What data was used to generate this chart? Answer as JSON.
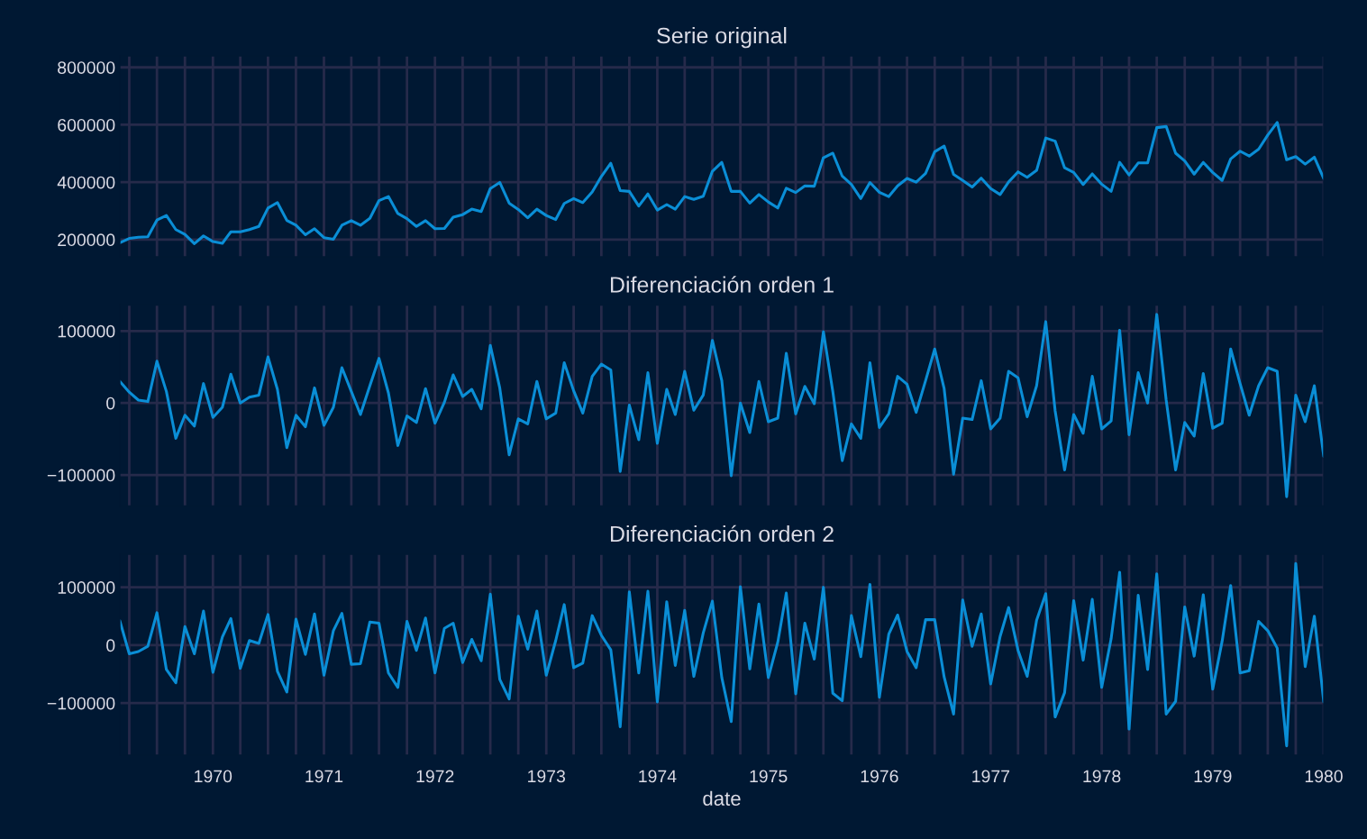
{
  "chart_data": [
    {
      "type": "line",
      "title": "Serie original",
      "x": [
        "1969-03",
        "1969-04",
        "1969-05",
        "1969-06",
        "1969-07",
        "1969-08",
        "1969-09",
        "1969-10",
        "1969-11",
        "1969-12",
        "1970-01",
        "1970-02",
        "1970-03",
        "1970-04",
        "1970-05",
        "1970-06",
        "1970-07",
        "1970-08",
        "1970-09",
        "1970-10",
        "1970-11",
        "1970-12",
        "1971-01",
        "1971-02",
        "1971-03",
        "1971-04",
        "1971-05",
        "1971-06",
        "1971-07",
        "1971-08",
        "1971-09",
        "1971-10",
        "1971-11",
        "1971-12",
        "1972-01",
        "1972-02",
        "1972-03",
        "1972-04",
        "1972-05",
        "1972-06",
        "1972-07",
        "1972-08",
        "1972-09",
        "1972-10",
        "1972-11",
        "1972-12",
        "1973-01",
        "1973-02",
        "1973-03",
        "1973-04",
        "1973-05",
        "1973-06",
        "1973-07",
        "1973-08",
        "1973-09",
        "1973-10",
        "1973-11",
        "1973-12",
        "1974-01",
        "1974-02",
        "1974-03",
        "1974-04",
        "1974-05",
        "1974-06",
        "1974-07",
        "1974-08",
        "1974-09",
        "1974-10",
        "1974-11",
        "1974-12",
        "1975-01",
        "1975-02",
        "1975-03",
        "1975-04",
        "1975-05",
        "1975-06",
        "1975-07",
        "1975-08",
        "1975-09",
        "1975-10",
        "1975-11",
        "1975-12",
        "1976-01",
        "1976-02",
        "1976-03",
        "1976-04",
        "1976-05",
        "1976-06",
        "1976-07",
        "1976-08",
        "1976-09",
        "1976-10",
        "1976-11",
        "1976-12",
        "1977-01",
        "1977-02",
        "1977-03",
        "1977-04",
        "1977-05",
        "1977-06",
        "1977-07",
        "1977-08",
        "1977-09",
        "1977-10",
        "1977-11",
        "1977-12",
        "1978-01",
        "1978-02",
        "1978-03",
        "1978-04",
        "1978-05",
        "1978-06",
        "1978-07",
        "1978-08",
        "1978-09",
        "1978-10",
        "1978-11",
        "1978-12",
        "1979-01",
        "1979-02",
        "1979-03",
        "1979-04",
        "1979-05",
        "1979-06",
        "1979-07",
        "1979-08",
        "1979-09",
        "1979-10",
        "1979-11",
        "1979-12",
        "1980-01"
      ],
      "xlim": [
        "1969-03",
        "1980-01"
      ],
      "ylim": [
        140000,
        840000
      ],
      "yticks": [
        200000,
        400000,
        600000,
        800000
      ],
      "xticks": [
        {
          "value": "1969-04",
          "label": null
        },
        {
          "value": "1969-07",
          "label": null
        },
        {
          "value": "1969-10",
          "label": null
        },
        {
          "value": "1970-01",
          "label": null
        },
        {
          "value": "1970-04",
          "label": null
        },
        {
          "value": "1970-07",
          "label": null
        },
        {
          "value": "1970-10",
          "label": null
        },
        {
          "value": "1971-01",
          "label": null
        },
        {
          "value": "1971-04",
          "label": null
        },
        {
          "value": "1971-07",
          "label": null
        },
        {
          "value": "1971-10",
          "label": null
        },
        {
          "value": "1972-01",
          "label": null
        },
        {
          "value": "1972-04",
          "label": null
        },
        {
          "value": "1972-07",
          "label": null
        },
        {
          "value": "1972-10",
          "label": null
        },
        {
          "value": "1973-01",
          "label": null
        },
        {
          "value": "1973-04",
          "label": null
        },
        {
          "value": "1973-07",
          "label": null
        },
        {
          "value": "1973-10",
          "label": null
        },
        {
          "value": "1974-01",
          "label": null
        },
        {
          "value": "1974-04",
          "label": null
        },
        {
          "value": "1974-07",
          "label": null
        },
        {
          "value": "1974-10",
          "label": null
        },
        {
          "value": "1975-01",
          "label": null
        },
        {
          "value": "1975-04",
          "label": null
        },
        {
          "value": "1975-07",
          "label": null
        },
        {
          "value": "1975-10",
          "label": null
        },
        {
          "value": "1976-01",
          "label": null
        },
        {
          "value": "1976-04",
          "label": null
        },
        {
          "value": "1976-07",
          "label": null
        },
        {
          "value": "1976-10",
          "label": null
        },
        {
          "value": "1977-01",
          "label": null
        },
        {
          "value": "1977-04",
          "label": null
        },
        {
          "value": "1977-07",
          "label": null
        },
        {
          "value": "1977-10",
          "label": null
        },
        {
          "value": "1978-01",
          "label": null
        },
        {
          "value": "1978-04",
          "label": null
        },
        {
          "value": "1978-07",
          "label": null
        },
        {
          "value": "1978-10",
          "label": null
        },
        {
          "value": "1979-01",
          "label": null
        },
        {
          "value": "1979-04",
          "label": null
        },
        {
          "value": "1979-07",
          "label": null
        },
        {
          "value": "1979-10",
          "label": null
        },
        {
          "value": "1980-01",
          "label": null
        }
      ],
      "tick_labels": "y",
      "grid": true,
      "series": [
        {
          "color": "#0a8ed6",
          "values": [
            189000,
            204000,
            208000,
            210000,
            268000,
            284000,
            235000,
            218000,
            186000,
            213000,
            193000,
            187000,
            227000,
            227000,
            235000,
            246000,
            310000,
            329000,
            267000,
            250000,
            217000,
            238000,
            207000,
            201000,
            250000,
            266000,
            250000,
            274000,
            336000,
            350000,
            291000,
            273000,
            246000,
            266000,
            238000,
            239000,
            278000,
            287000,
            306000,
            298000,
            378000,
            399000,
            327000,
            305000,
            276000,
            306000,
            284000,
            270000,
            326000,
            343000,
            329000,
            366000,
            420000,
            466000,
            371000,
            368000,
            317000,
            359000,
            303000,
            322000,
            306000,
            350000,
            340000,
            351000,
            438000,
            469000,
            368000,
            368000,
            327000,
            357000,
            331000,
            310000,
            379000,
            364000,
            387000,
            386000,
            485000,
            501000,
            421000,
            392000,
            343000,
            399000,
            365000,
            350000,
            387000,
            413000,
            400000,
            431000,
            506000,
            526000,
            427000,
            406000,
            383000,
            414000,
            378000,
            357000,
            401000,
            436000,
            417000,
            441000,
            554000,
            543000,
            450000,
            434000,
            392000,
            429000,
            393000,
            368000,
            469000,
            425000,
            467000,
            467000,
            590000,
            594000,
            501000,
            474000,
            428000,
            469000,
            434000,
            406000,
            481000,
            508000,
            491000,
            515000,
            564000,
            608000,
            478000,
            489000,
            463000,
            487000,
            413000
          ]
        }
      ]
    },
    {
      "type": "line",
      "title": "Diferenciación orden 1",
      "x": [
        "1969-03",
        "1969-04",
        "1969-05",
        "1969-06",
        "1969-07",
        "1969-08",
        "1969-09",
        "1969-10",
        "1969-11",
        "1969-12",
        "1970-01",
        "1970-02",
        "1970-03",
        "1970-04",
        "1970-05",
        "1970-06",
        "1970-07",
        "1970-08",
        "1970-09",
        "1970-10",
        "1970-11",
        "1970-12",
        "1971-01",
        "1971-02",
        "1971-03",
        "1971-04",
        "1971-05",
        "1971-06",
        "1971-07",
        "1971-08",
        "1971-09",
        "1971-10",
        "1971-11",
        "1971-12",
        "1972-01",
        "1972-02",
        "1972-03",
        "1972-04",
        "1972-05",
        "1972-06",
        "1972-07",
        "1972-08",
        "1972-09",
        "1972-10",
        "1972-11",
        "1972-12",
        "1973-01",
        "1973-02",
        "1973-03",
        "1973-04",
        "1973-05",
        "1973-06",
        "1973-07",
        "1973-08",
        "1973-09",
        "1973-10",
        "1973-11",
        "1973-12",
        "1974-01",
        "1974-02",
        "1974-03",
        "1974-04",
        "1974-05",
        "1974-06",
        "1974-07",
        "1974-08",
        "1974-09",
        "1974-10",
        "1974-11",
        "1974-12",
        "1975-01",
        "1975-02",
        "1975-03",
        "1975-04",
        "1975-05",
        "1975-06",
        "1975-07",
        "1975-08",
        "1975-09",
        "1975-10",
        "1975-11",
        "1975-12",
        "1976-01",
        "1976-02",
        "1976-03",
        "1976-04",
        "1976-05",
        "1976-06",
        "1976-07",
        "1976-08",
        "1976-09",
        "1976-10",
        "1976-11",
        "1976-12",
        "1977-01",
        "1977-02",
        "1977-03",
        "1977-04",
        "1977-05",
        "1977-06",
        "1977-07",
        "1977-08",
        "1977-09",
        "1977-10",
        "1977-11",
        "1977-12",
        "1978-01",
        "1978-02",
        "1978-03",
        "1978-04",
        "1978-05",
        "1978-06",
        "1978-07",
        "1978-08",
        "1978-09",
        "1978-10",
        "1978-11",
        "1978-12",
        "1979-01",
        "1979-02",
        "1979-03",
        "1979-04",
        "1979-05",
        "1979-06",
        "1979-07",
        "1979-08",
        "1979-09",
        "1979-10",
        "1979-11",
        "1979-12",
        "1980-01"
      ],
      "xlim": [
        "1969-03",
        "1980-01"
      ],
      "ylim": [
        -143000,
        136000
      ],
      "yticks": [
        {
          "value": -100000,
          "label": "−100000"
        },
        0,
        100000
      ],
      "xticks": [
        {
          "value": "1969-04",
          "label": null
        },
        {
          "value": "1969-07",
          "label": null
        },
        {
          "value": "1969-10",
          "label": null
        },
        {
          "value": "1970-01",
          "label": null
        },
        {
          "value": "1970-04",
          "label": null
        },
        {
          "value": "1970-07",
          "label": null
        },
        {
          "value": "1970-10",
          "label": null
        },
        {
          "value": "1971-01",
          "label": null
        },
        {
          "value": "1971-04",
          "label": null
        },
        {
          "value": "1971-07",
          "label": null
        },
        {
          "value": "1971-10",
          "label": null
        },
        {
          "value": "1972-01",
          "label": null
        },
        {
          "value": "1972-04",
          "label": null
        },
        {
          "value": "1972-07",
          "label": null
        },
        {
          "value": "1972-10",
          "label": null
        },
        {
          "value": "1973-01",
          "label": null
        },
        {
          "value": "1973-04",
          "label": null
        },
        {
          "value": "1973-07",
          "label": null
        },
        {
          "value": "1973-10",
          "label": null
        },
        {
          "value": "1974-01",
          "label": null
        },
        {
          "value": "1974-04",
          "label": null
        },
        {
          "value": "1974-07",
          "label": null
        },
        {
          "value": "1974-10",
          "label": null
        },
        {
          "value": "1975-01",
          "label": null
        },
        {
          "value": "1975-04",
          "label": null
        },
        {
          "value": "1975-07",
          "label": null
        },
        {
          "value": "1975-10",
          "label": null
        },
        {
          "value": "1976-01",
          "label": null
        },
        {
          "value": "1976-04",
          "label": null
        },
        {
          "value": "1976-07",
          "label": null
        },
        {
          "value": "1976-10",
          "label": null
        },
        {
          "value": "1977-01",
          "label": null
        },
        {
          "value": "1977-04",
          "label": null
        },
        {
          "value": "1977-07",
          "label": null
        },
        {
          "value": "1977-10",
          "label": null
        },
        {
          "value": "1978-01",
          "label": null
        },
        {
          "value": "1978-04",
          "label": null
        },
        {
          "value": "1978-07",
          "label": null
        },
        {
          "value": "1978-10",
          "label": null
        },
        {
          "value": "1979-01",
          "label": null
        },
        {
          "value": "1979-04",
          "label": null
        },
        {
          "value": "1979-07",
          "label": null
        },
        {
          "value": "1979-10",
          "label": null
        },
        {
          "value": "1980-01",
          "label": null
        }
      ],
      "tick_labels": "y",
      "grid": true,
      "series": [
        {
          "color": "#0a8ed6",
          "values": [
            30000,
            15000,
            4000,
            2000,
            58000,
            16000,
            -49000,
            -17000,
            -32000,
            27000,
            -20000,
            -6000,
            40000,
            0,
            8000,
            11000,
            64000,
            19000,
            -62000,
            -17000,
            -33000,
            21000,
            -31000,
            -6000,
            49000,
            16000,
            -16000,
            24000,
            62000,
            14000,
            -59000,
            -18000,
            -27000,
            20000,
            -28000,
            1000,
            39000,
            9000,
            19000,
            -8000,
            80000,
            21000,
            -72000,
            -22000,
            -29000,
            30000,
            -22000,
            -14000,
            56000,
            17000,
            -14000,
            37000,
            54000,
            46000,
            -95000,
            -3000,
            -51000,
            42000,
            -56000,
            19000,
            -16000,
            44000,
            -10000,
            11000,
            87000,
            31000,
            -101000,
            0,
            -41000,
            30000,
            -26000,
            -21000,
            69000,
            -15000,
            23000,
            -1000,
            99000,
            16000,
            -80000,
            -29000,
            -49000,
            56000,
            -34000,
            -15000,
            37000,
            26000,
            -13000,
            31000,
            75000,
            20000,
            -99000,
            -21000,
            -23000,
            31000,
            -36000,
            -21000,
            44000,
            35000,
            -19000,
            24000,
            113000,
            -11000,
            -93000,
            -16000,
            -42000,
            37000,
            -36000,
            -25000,
            101000,
            -44000,
            42000,
            0,
            123000,
            4000,
            -93000,
            -27000,
            -46000,
            41000,
            -35000,
            -28000,
            75000,
            27000,
            -17000,
            24000,
            49000,
            44000,
            -130000,
            11000,
            -26000,
            24000,
            -74000
          ]
        }
      ]
    },
    {
      "type": "line",
      "title": "Diferenciación orden 2",
      "xlabel": "date",
      "x": [
        "1969-03",
        "1969-04",
        "1969-05",
        "1969-06",
        "1969-07",
        "1969-08",
        "1969-09",
        "1969-10",
        "1969-11",
        "1969-12",
        "1970-01",
        "1970-02",
        "1970-03",
        "1970-04",
        "1970-05",
        "1970-06",
        "1970-07",
        "1970-08",
        "1970-09",
        "1970-10",
        "1970-11",
        "1970-12",
        "1971-01",
        "1971-02",
        "1971-03",
        "1971-04",
        "1971-05",
        "1971-06",
        "1971-07",
        "1971-08",
        "1971-09",
        "1971-10",
        "1971-11",
        "1971-12",
        "1972-01",
        "1972-02",
        "1972-03",
        "1972-04",
        "1972-05",
        "1972-06",
        "1972-07",
        "1972-08",
        "1972-09",
        "1972-10",
        "1972-11",
        "1972-12",
        "1973-01",
        "1973-02",
        "1973-03",
        "1973-04",
        "1973-05",
        "1973-06",
        "1973-07",
        "1973-08",
        "1973-09",
        "1973-10",
        "1973-11",
        "1973-12",
        "1974-01",
        "1974-02",
        "1974-03",
        "1974-04",
        "1974-05",
        "1974-06",
        "1974-07",
        "1974-08",
        "1974-09",
        "1974-10",
        "1974-11",
        "1974-12",
        "1975-01",
        "1975-02",
        "1975-03",
        "1975-04",
        "1975-05",
        "1975-06",
        "1975-07",
        "1975-08",
        "1975-09",
        "1975-10",
        "1975-11",
        "1975-12",
        "1976-01",
        "1976-02",
        "1976-03",
        "1976-04",
        "1976-05",
        "1976-06",
        "1976-07",
        "1976-08",
        "1976-09",
        "1976-10",
        "1976-11",
        "1976-12",
        "1977-01",
        "1977-02",
        "1977-03",
        "1977-04",
        "1977-05",
        "1977-06",
        "1977-07",
        "1977-08",
        "1977-09",
        "1977-10",
        "1977-11",
        "1977-12",
        "1978-01",
        "1978-02",
        "1978-03",
        "1978-04",
        "1978-05",
        "1978-06",
        "1978-07",
        "1978-08",
        "1978-09",
        "1978-10",
        "1978-11",
        "1978-12",
        "1979-01",
        "1979-02",
        "1979-03",
        "1979-04",
        "1979-05",
        "1979-06",
        "1979-07",
        "1979-08",
        "1979-09",
        "1979-10",
        "1979-11",
        "1979-12",
        "1980-01"
      ],
      "xlim": [
        "1969-03",
        "1980-01"
      ],
      "ylim": [
        -190000,
        157000
      ],
      "yticks": [
        {
          "value": -100000,
          "label": "−100000"
        },
        0,
        100000
      ],
      "xticks": [
        {
          "value": "1969-04",
          "label": null
        },
        {
          "value": "1969-07",
          "label": null
        },
        {
          "value": "1969-10",
          "label": null
        },
        {
          "value": "1970-01",
          "label": "1970"
        },
        {
          "value": "1970-04",
          "label": null
        },
        {
          "value": "1970-07",
          "label": null
        },
        {
          "value": "1970-10",
          "label": null
        },
        {
          "value": "1971-01",
          "label": "1971"
        },
        {
          "value": "1971-04",
          "label": null
        },
        {
          "value": "1971-07",
          "label": null
        },
        {
          "value": "1971-10",
          "label": null
        },
        {
          "value": "1972-01",
          "label": "1972"
        },
        {
          "value": "1972-04",
          "label": null
        },
        {
          "value": "1972-07",
          "label": null
        },
        {
          "value": "1972-10",
          "label": null
        },
        {
          "value": "1973-01",
          "label": "1973"
        },
        {
          "value": "1973-04",
          "label": null
        },
        {
          "value": "1973-07",
          "label": null
        },
        {
          "value": "1973-10",
          "label": null
        },
        {
          "value": "1974-01",
          "label": "1974"
        },
        {
          "value": "1974-04",
          "label": null
        },
        {
          "value": "1974-07",
          "label": null
        },
        {
          "value": "1974-10",
          "label": null
        },
        {
          "value": "1975-01",
          "label": "1975"
        },
        {
          "value": "1975-04",
          "label": null
        },
        {
          "value": "1975-07",
          "label": null
        },
        {
          "value": "1975-10",
          "label": null
        },
        {
          "value": "1976-01",
          "label": "1976"
        },
        {
          "value": "1976-04",
          "label": null
        },
        {
          "value": "1976-07",
          "label": null
        },
        {
          "value": "1976-10",
          "label": null
        },
        {
          "value": "1977-01",
          "label": "1977"
        },
        {
          "value": "1977-04",
          "label": null
        },
        {
          "value": "1977-07",
          "label": null
        },
        {
          "value": "1977-10",
          "label": null
        },
        {
          "value": "1978-01",
          "label": "1978"
        },
        {
          "value": "1978-04",
          "label": null
        },
        {
          "value": "1978-07",
          "label": null
        },
        {
          "value": "1978-10",
          "label": null
        },
        {
          "value": "1979-01",
          "label": "1979"
        },
        {
          "value": "1979-04",
          "label": null
        },
        {
          "value": "1979-07",
          "label": null
        },
        {
          "value": "1979-10",
          "label": null
        },
        {
          "value": "1980-01",
          "label": "1980"
        }
      ],
      "grid": true,
      "series": [
        {
          "color": "#0a8ed6",
          "values": [
            42000,
            -15000,
            -11000,
            -2000,
            56000,
            -42000,
            -65000,
            32000,
            -15000,
            59000,
            -47000,
            14000,
            46000,
            -40000,
            8000,
            3000,
            53000,
            -45000,
            -81000,
            45000,
            -16000,
            54000,
            -52000,
            25000,
            55000,
            -33000,
            -32000,
            40000,
            38000,
            -48000,
            -73000,
            41000,
            -9000,
            47000,
            -48000,
            29000,
            38000,
            -30000,
            10000,
            -27000,
            88000,
            -59000,
            -93000,
            50000,
            -7000,
            59000,
            -52000,
            8000,
            70000,
            -39000,
            -31000,
            51000,
            17000,
            -8000,
            -141000,
            92000,
            -48000,
            93000,
            -98000,
            75000,
            -35000,
            60000,
            -54000,
            21000,
            76000,
            -56000,
            -132000,
            101000,
            -41000,
            71000,
            -56000,
            5000,
            90000,
            -84000,
            38000,
            -24000,
            100000,
            -83000,
            -96000,
            51000,
            -20000,
            105000,
            -90000,
            19000,
            52000,
            -11000,
            -39000,
            44000,
            44000,
            -55000,
            -119000,
            78000,
            -2000,
            54000,
            -67000,
            15000,
            65000,
            -9000,
            -54000,
            43000,
            89000,
            -124000,
            -82000,
            77000,
            -26000,
            79000,
            -73000,
            11000,
            126000,
            -145000,
            86000,
            -42000,
            123000,
            -119000,
            -97000,
            66000,
            -19000,
            87000,
            -76000,
            7000,
            103000,
            -48000,
            -44000,
            41000,
            25000,
            -5000,
            -174000,
            141000,
            -37000,
            50000,
            -98000
          ]
        }
      ]
    }
  ]
}
